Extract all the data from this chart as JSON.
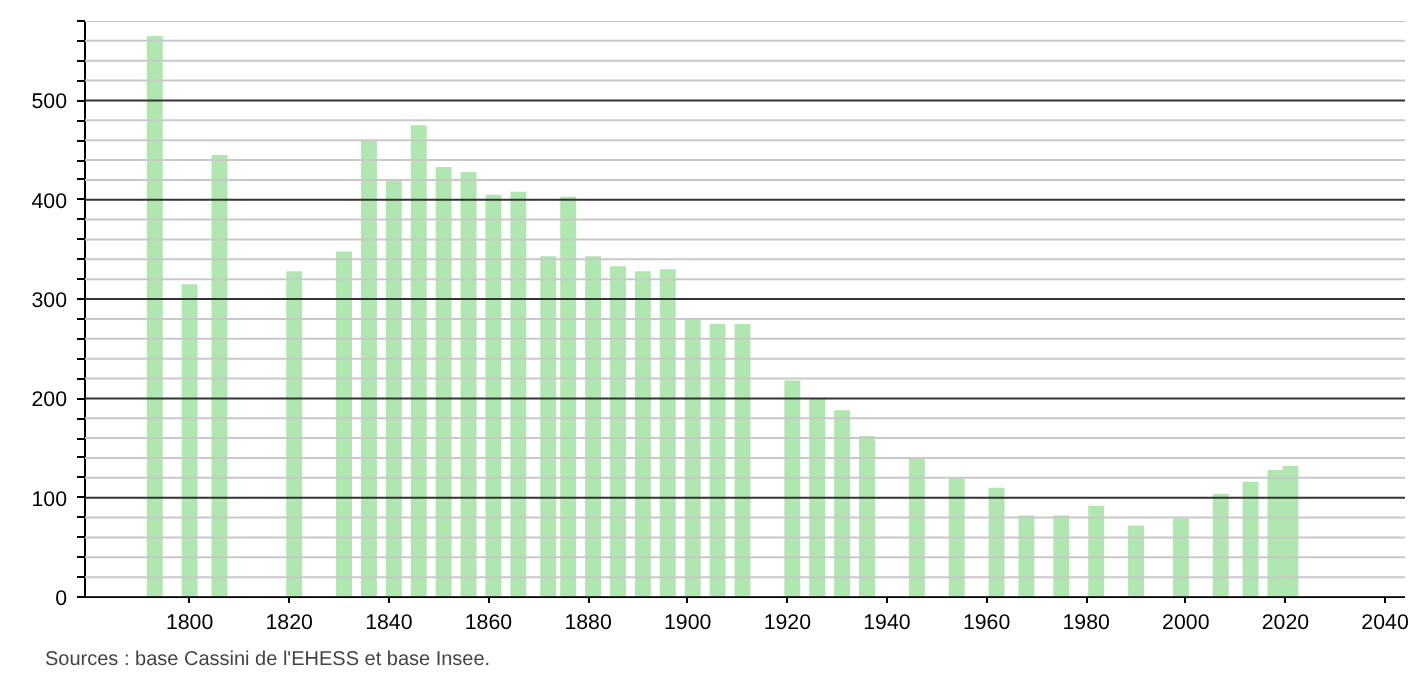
{
  "chart_data": {
    "type": "bar",
    "x": [
      1793,
      1800,
      1806,
      1821,
      1831,
      1836,
      1841,
      1846,
      1851,
      1856,
      1861,
      1866,
      1872,
      1876,
      1881,
      1886,
      1891,
      1896,
      1901,
      1906,
      1911,
      1921,
      1926,
      1931,
      1936,
      1946,
      1954,
      1962,
      1968,
      1975,
      1982,
      1990,
      1999,
      2007,
      2013,
      2018,
      2021
    ],
    "values": [
      565,
      315,
      445,
      328,
      348,
      460,
      420,
      475,
      433,
      428,
      405,
      408,
      343,
      403,
      343,
      333,
      328,
      330,
      280,
      275,
      275,
      218,
      200,
      188,
      162,
      140,
      120,
      110,
      82,
      82,
      92,
      72,
      79,
      104,
      116,
      128,
      132
    ],
    "color": "#b0e6b0",
    "xlim": [
      1779,
      2044
    ],
    "ylim": [
      0,
      580
    ],
    "xticks": [
      1800,
      1820,
      1840,
      1860,
      1880,
      1900,
      1920,
      1940,
      1960,
      1980,
      2000,
      2020,
      2040
    ],
    "yticks": [
      0,
      {
        "value": 20,
        "label": null
      },
      {
        "value": 40,
        "label": null
      },
      {
        "value": 60,
        "label": null
      },
      {
        "value": 80,
        "label": null
      },
      100,
      {
        "value": 120,
        "label": null
      },
      {
        "value": 140,
        "label": null
      },
      {
        "value": 160,
        "label": null
      },
      {
        "value": 180,
        "label": null
      },
      200,
      {
        "value": 220,
        "label": null
      },
      {
        "value": 240,
        "label": null
      },
      {
        "value": 260,
        "label": null
      },
      {
        "value": 280,
        "label": null
      },
      300,
      {
        "value": 320,
        "label": null
      },
      {
        "value": 340,
        "label": null
      },
      {
        "value": 360,
        "label": null
      },
      {
        "value": 380,
        "label": null
      },
      400,
      {
        "value": 420,
        "label": null
      },
      {
        "value": 440,
        "label": null
      },
      {
        "value": 460,
        "label": null
      },
      {
        "value": 480,
        "label": null
      },
      500,
      {
        "value": 520,
        "label": null
      },
      {
        "value": 540,
        "label": null
      },
      {
        "value": 560,
        "label": null
      },
      {
        "value": 580,
        "label": null
      }
    ],
    "grid": "y",
    "annotations": [
      "Sources : base Cassini de l'EHESS et base Insee."
    ]
  }
}
